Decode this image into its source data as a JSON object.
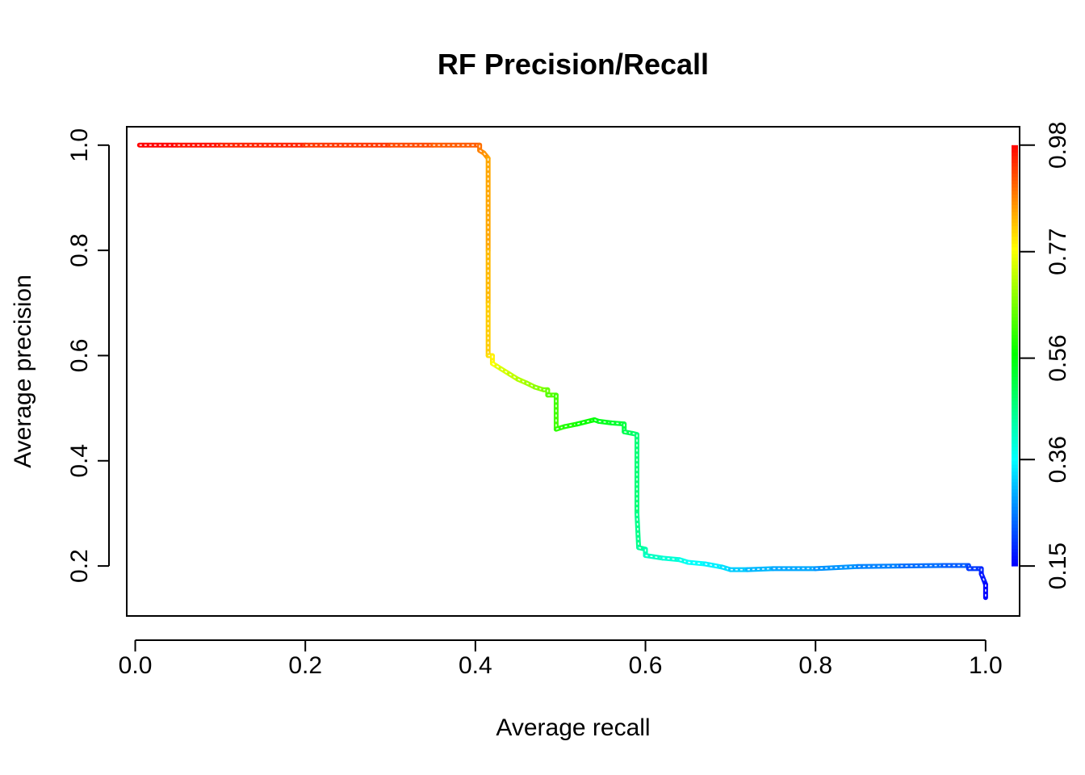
{
  "chart_data": {
    "type": "line",
    "title": "RF Precision/Recall",
    "xlabel": "Average recall",
    "ylabel": "Average precision",
    "xlim": [
      -0.01,
      1.04
    ],
    "ylim": [
      0.105,
      1.035
    ],
    "x_ticks": [
      0.0,
      0.2,
      0.4,
      0.6,
      0.8,
      1.0
    ],
    "x_tick_labels": [
      "0.0",
      "0.2",
      "0.4",
      "0.6",
      "0.8",
      "1.0"
    ],
    "y_ticks": [
      0.2,
      0.4,
      0.6,
      0.8,
      1.0
    ],
    "y_tick_labels": [
      "0.2",
      "0.4",
      "0.6",
      "0.8",
      "1.0"
    ],
    "grid": false,
    "series": [
      {
        "x": [
          0.005,
          0.05,
          0.1,
          0.2,
          0.3,
          0.35,
          0.405,
          0.405,
          0.41,
          0.415,
          0.415,
          0.415,
          0.415,
          0.42,
          0.42,
          0.425,
          0.43,
          0.44,
          0.45,
          0.46,
          0.47,
          0.48,
          0.485,
          0.485,
          0.495,
          0.495,
          0.505,
          0.52,
          0.54,
          0.545,
          0.56,
          0.575,
          0.575,
          0.585,
          0.59,
          0.59,
          0.592,
          0.6,
          0.6,
          0.62,
          0.64,
          0.65,
          0.67,
          0.69,
          0.7,
          0.72,
          0.75,
          0.8,
          0.85,
          0.9,
          0.95,
          0.98,
          0.98,
          0.995,
          0.995,
          1.0,
          1.0
        ],
        "y": [
          1.0,
          1.0,
          1.0,
          1.0,
          1.0,
          1.0,
          1.0,
          0.99,
          0.985,
          0.975,
          0.8,
          0.7,
          0.6,
          0.6,
          0.585,
          0.58,
          0.575,
          0.565,
          0.555,
          0.548,
          0.54,
          0.535,
          0.535,
          0.525,
          0.525,
          0.46,
          0.465,
          0.47,
          0.478,
          0.475,
          0.472,
          0.47,
          0.455,
          0.452,
          0.45,
          0.3,
          0.235,
          0.232,
          0.22,
          0.215,
          0.212,
          0.207,
          0.204,
          0.198,
          0.193,
          0.193,
          0.195,
          0.195,
          0.199,
          0.2,
          0.201,
          0.201,
          0.195,
          0.195,
          0.185,
          0.165,
          0.14
        ]
      }
    ],
    "colorbar": {
      "range": [
        0.15,
        0.98
      ],
      "ticks": [
        0.15,
        0.36,
        0.56,
        0.77,
        0.98
      ],
      "tick_labels": [
        "0.15",
        "0.36",
        "0.56",
        "0.77",
        "0.98"
      ],
      "position": "right",
      "colormap": "rainbow blue-to-red"
    }
  }
}
